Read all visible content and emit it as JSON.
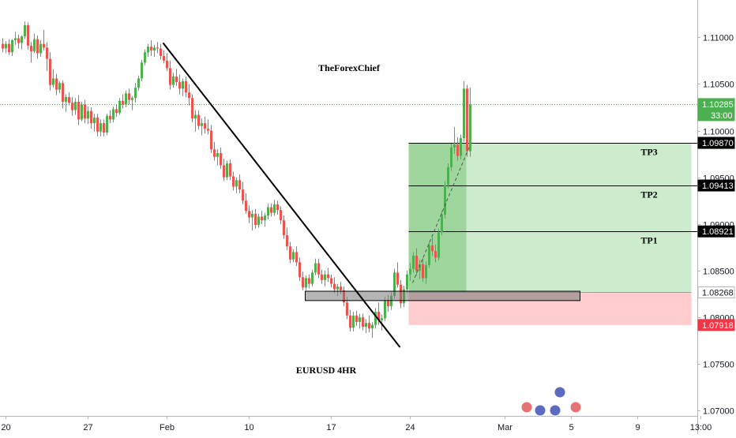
{
  "chart_data": {
    "type": "candlestick",
    "symbol": "EURUSD 4HR",
    "watermark": "TheForexChief",
    "ylim": [
      1.0675,
      1.114
    ],
    "y_ticks": [
      {
        "value": 1.11,
        "label": "1.11000"
      },
      {
        "value": 1.105,
        "label": "1.10500"
      },
      {
        "value": 1.1,
        "label": "1.10000"
      },
      {
        "value": 1.095,
        "label": "1.09500"
      },
      {
        "value": 1.09,
        "label": "1.09000"
      },
      {
        "value": 1.085,
        "label": "1.08500"
      },
      {
        "value": 1.08,
        "label": "1.08000"
      },
      {
        "value": 1.075,
        "label": "1.07500"
      },
      {
        "value": 1.07,
        "label": "1.07000"
      }
    ],
    "x_ticks": [
      {
        "bar": 1,
        "label": "20"
      },
      {
        "bar": 27,
        "label": "27"
      },
      {
        "bar": 52,
        "label": "Feb"
      },
      {
        "bar": 78,
        "label": "10"
      },
      {
        "bar": 104,
        "label": "17"
      },
      {
        "bar": 129,
        "label": "24"
      },
      {
        "bar": 159,
        "label": "Mar"
      },
      {
        "bar": 180,
        "label": "5"
      },
      {
        "bar": 201,
        "label": "9"
      },
      {
        "bar": 221,
        "label": "13:00"
      }
    ],
    "price_labels": [
      {
        "value": 1.10285,
        "label": "1.10285",
        "sublabel": "33:00",
        "bg": "#4caf50",
        "fg": "#ffffff"
      },
      {
        "value": 1.09868,
        "label": "1.09868",
        "bg": "#4caf50",
        "fg": "#ffffff"
      },
      {
        "value": 1.0987,
        "label": "1.09870",
        "bg": "#000000",
        "fg": "#ffffff"
      },
      {
        "value": 1.09413,
        "label": "1.09413",
        "bg": "#000000",
        "fg": "#ffffff"
      },
      {
        "value": 1.08921,
        "label": "1.08921",
        "bg": "#000000",
        "fg": "#ffffff"
      },
      {
        "value": 1.08268,
        "label": "1.08268",
        "bg": "#ffffff",
        "fg": "#131722"
      },
      {
        "value": 1.07918,
        "label": "1.07918",
        "bg": "#f23645",
        "fg": "#ffffff"
      }
    ],
    "current_price": 1.10285,
    "take_profit_levels": [
      {
        "name": "TP3",
        "value": 1.0987
      },
      {
        "name": "TP2",
        "value": 1.09413
      },
      {
        "name": "TP1",
        "value": 1.08921
      }
    ],
    "position": {
      "entry": 1.08268,
      "stop": 1.07918,
      "target": 1.09868,
      "start_bar": 129,
      "end_bar": 218,
      "filled_until_bar": 147
    },
    "support_zone": {
      "top": 1.0828,
      "bottom": 1.0818,
      "start_bar": 96,
      "end_bar": 183
    },
    "trendline": {
      "from_bar": 51,
      "from_price": 1.1094,
      "to_bar": 126,
      "to_price": 1.0768
    },
    "projection_path": {
      "from_bar": 130,
      "from_price": 1.0837,
      "to_bar": 148,
      "to_price": 1.0983
    },
    "candles_ohlc": [
      [
        1.1093,
        1.1099,
        1.1084,
        1.1088
      ],
      [
        1.1088,
        1.1096,
        1.1083,
        1.1093
      ],
      [
        1.1093,
        1.1098,
        1.1081,
        1.1084
      ],
      [
        1.1084,
        1.1098,
        1.108,
        1.1097
      ],
      [
        1.1097,
        1.1106,
        1.1092,
        1.1099
      ],
      [
        1.1099,
        1.1103,
        1.1088,
        1.1094
      ],
      [
        1.1094,
        1.1102,
        1.1087,
        1.1101
      ],
      [
        1.1101,
        1.1117,
        1.1098,
        1.1113
      ],
      [
        1.1113,
        1.1116,
        1.1087,
        1.1091
      ],
      [
        1.1091,
        1.1095,
        1.1073,
        1.1085
      ],
      [
        1.1085,
        1.1104,
        1.1083,
        1.1098
      ],
      [
        1.1098,
        1.1102,
        1.1077,
        1.1083
      ],
      [
        1.1083,
        1.1097,
        1.1079,
        1.1093
      ],
      [
        1.1093,
        1.1108,
        1.1086,
        1.1089
      ],
      [
        1.1089,
        1.1095,
        1.1064,
        1.1077
      ],
      [
        1.1077,
        1.1084,
        1.1043,
        1.1049
      ],
      [
        1.1049,
        1.1066,
        1.1046,
        1.1056
      ],
      [
        1.1056,
        1.1061,
        1.1038,
        1.1044
      ],
      [
        1.1044,
        1.1053,
        1.104,
        1.1051
      ],
      [
        1.1051,
        1.1054,
        1.1024,
        1.1031
      ],
      [
        1.1031,
        1.1039,
        1.102,
        1.1036
      ],
      [
        1.1036,
        1.1041,
        1.1027,
        1.103
      ],
      [
        1.103,
        1.1036,
        1.1016,
        1.1022
      ],
      [
        1.1022,
        1.1035,
        1.1017,
        1.1031
      ],
      [
        1.1031,
        1.1038,
        1.1006,
        1.1012
      ],
      [
        1.1012,
        1.1031,
        1.101,
        1.1028
      ],
      [
        1.1028,
        1.1033,
        1.1008,
        1.1013
      ],
      [
        1.1013,
        1.1026,
        1.1007,
        1.1021
      ],
      [
        1.1021,
        1.1025,
        1.1002,
        1.1008
      ],
      [
        1.1008,
        1.1018,
        1.0999,
        1.1014
      ],
      [
        1.1014,
        1.1018,
        1.0994,
        1.0999
      ],
      [
        1.0999,
        1.1012,
        1.0994,
        1.1008
      ],
      [
        1.1008,
        1.1012,
        1.0994,
        1.0998
      ],
      [
        1.0998,
        1.1018,
        1.0995,
        1.1016
      ],
      [
        1.1016,
        1.1022,
        1.1008,
        1.1012
      ],
      [
        1.1012,
        1.1026,
        1.1009,
        1.1023
      ],
      [
        1.1023,
        1.1028,
        1.1015,
        1.1019
      ],
      [
        1.1019,
        1.1035,
        1.1017,
        1.1032
      ],
      [
        1.1032,
        1.1039,
        1.1024,
        1.1028
      ],
      [
        1.1028,
        1.1043,
        1.1025,
        1.104
      ],
      [
        1.104,
        1.1045,
        1.1028,
        1.1033
      ],
      [
        1.1033,
        1.1037,
        1.1022,
        1.1035
      ],
      [
        1.1035,
        1.1051,
        1.103,
        1.1046
      ],
      [
        1.1046,
        1.1059,
        1.1043,
        1.1056
      ],
      [
        1.1056,
        1.1076,
        1.1053,
        1.1073
      ],
      [
        1.1073,
        1.1087,
        1.107,
        1.1084
      ],
      [
        1.1084,
        1.1093,
        1.1079,
        1.109
      ],
      [
        1.109,
        1.1097,
        1.108,
        1.1086
      ],
      [
        1.1086,
        1.1092,
        1.1079,
        1.1089
      ],
      [
        1.1089,
        1.1095,
        1.1083,
        1.1088
      ],
      [
        1.1088,
        1.1093,
        1.1076,
        1.108
      ],
      [
        1.108,
        1.1086,
        1.1072,
        1.1075
      ],
      [
        1.1075,
        1.1083,
        1.1064,
        1.1067
      ],
      [
        1.1067,
        1.1075,
        1.1044,
        1.1049
      ],
      [
        1.1049,
        1.1062,
        1.1046,
        1.1058
      ],
      [
        1.1058,
        1.1066,
        1.1048,
        1.1052
      ],
      [
        1.1052,
        1.106,
        1.1039,
        1.1045
      ],
      [
        1.1045,
        1.1056,
        1.1037,
        1.1053
      ],
      [
        1.1053,
        1.1058,
        1.1036,
        1.1041
      ],
      [
        1.1041,
        1.105,
        1.1027,
        1.1035
      ],
      [
        1.1035,
        1.1039,
        1.1009,
        1.1013
      ],
      [
        1.1013,
        1.1022,
        1.0999,
        1.1017
      ],
      [
        1.1017,
        1.1022,
        1.1001,
        1.1005
      ],
      [
        1.1005,
        1.1013,
        1.0995,
        1.1008
      ],
      [
        1.1008,
        1.1015,
        1.0997,
        1.1002
      ],
      [
        1.1002,
        1.1012,
        1.0996,
        1.1
      ],
      [
        1.1,
        1.1006,
        1.0976,
        1.098
      ],
      [
        1.098,
        1.0988,
        1.0968,
        1.0972
      ],
      [
        1.0972,
        1.098,
        1.0963,
        1.0976
      ],
      [
        1.0976,
        1.0982,
        1.0959,
        1.0963
      ],
      [
        1.0963,
        1.097,
        1.0946,
        1.095
      ],
      [
        1.095,
        1.0968,
        1.0947,
        1.0965
      ],
      [
        1.0965,
        1.0969,
        1.0947,
        1.0951
      ],
      [
        1.0951,
        1.0956,
        1.0936,
        1.094
      ],
      [
        1.094,
        1.095,
        1.0933,
        1.0947
      ],
      [
        1.0947,
        1.0953,
        1.0933,
        1.0937
      ],
      [
        1.0937,
        1.0945,
        1.0921,
        1.0925
      ],
      [
        1.0925,
        1.0933,
        1.0911,
        1.0914
      ],
      [
        1.0914,
        1.092,
        1.0901,
        1.0907
      ],
      [
        1.0907,
        1.0915,
        1.0893,
        1.0911
      ],
      [
        1.0911,
        1.0916,
        1.0895,
        1.0899
      ],
      [
        1.0899,
        1.0911,
        1.0896,
        1.0908
      ],
      [
        1.0908,
        1.0914,
        1.09,
        1.0904
      ],
      [
        1.0904,
        1.0912,
        1.0897,
        1.0909
      ],
      [
        1.0909,
        1.0922,
        1.0905,
        1.0918
      ],
      [
        1.0918,
        1.0922,
        1.0908,
        1.0912
      ],
      [
        1.0912,
        1.0926,
        1.0909,
        1.0921
      ],
      [
        1.0921,
        1.0925,
        1.091,
        1.0915
      ],
      [
        1.0915,
        1.0919,
        1.09,
        1.0904
      ],
      [
        1.0904,
        1.0909,
        1.0884,
        1.0888
      ],
      [
        1.0888,
        1.0896,
        1.0872,
        1.0876
      ],
      [
        1.0876,
        1.0881,
        1.0858,
        1.0862
      ],
      [
        1.0862,
        1.0873,
        1.0859,
        1.087
      ],
      [
        1.087,
        1.0876,
        1.0855,
        1.0859
      ],
      [
        1.0859,
        1.0864,
        1.0839,
        1.0843
      ],
      [
        1.0843,
        1.0849,
        1.0829,
        1.0832
      ],
      [
        1.0832,
        1.0845,
        1.0829,
        1.0842
      ],
      [
        1.0842,
        1.0846,
        1.0831,
        1.0836
      ],
      [
        1.0836,
        1.0851,
        1.0833,
        1.0848
      ],
      [
        1.0848,
        1.0863,
        1.0845,
        1.0858
      ],
      [
        1.0858,
        1.0863,
        1.0842,
        1.0846
      ],
      [
        1.0846,
        1.0851,
        1.0836,
        1.084
      ],
      [
        1.084,
        1.085,
        1.0833,
        1.0846
      ],
      [
        1.0846,
        1.0853,
        1.0838,
        1.0842
      ],
      [
        1.0842,
        1.0846,
        1.0832,
        1.0836
      ],
      [
        1.0836,
        1.0843,
        1.0826,
        1.083
      ],
      [
        1.083,
        1.0836,
        1.0823,
        1.0833
      ],
      [
        1.0833,
        1.0838,
        1.0825,
        1.0829
      ],
      [
        1.0829,
        1.0833,
        1.0812,
        1.0816
      ],
      [
        1.0816,
        1.0822,
        1.0798,
        1.0802
      ],
      [
        1.0802,
        1.0808,
        1.0785,
        1.0789
      ],
      [
        1.0789,
        1.0806,
        1.0785,
        1.0802
      ],
      [
        1.0802,
        1.0807,
        1.0791,
        1.0795
      ],
      [
        1.0795,
        1.0804,
        1.0788,
        1.08
      ],
      [
        1.08,
        1.0804,
        1.0786,
        1.079
      ],
      [
        1.079,
        1.0798,
        1.0783,
        1.0794
      ],
      [
        1.0794,
        1.0802,
        1.0784,
        1.0788
      ],
      [
        1.0788,
        1.0795,
        1.0778,
        1.0792
      ],
      [
        1.0792,
        1.081,
        1.0788,
        1.0806
      ],
      [
        1.0806,
        1.0816,
        1.0792,
        1.0797
      ],
      [
        1.0797,
        1.0803,
        1.0786,
        1.0799
      ],
      [
        1.0799,
        1.0822,
        1.0796,
        1.0818
      ],
      [
        1.0818,
        1.0824,
        1.0806,
        1.0812
      ],
      [
        1.0812,
        1.0827,
        1.0808,
        1.0823
      ],
      [
        1.0823,
        1.0852,
        1.082,
        1.0848
      ],
      [
        1.0848,
        1.0859,
        1.0832,
        1.0835
      ],
      [
        1.0835,
        1.084,
        1.081,
        1.0815
      ],
      [
        1.0815,
        1.0834,
        1.0811,
        1.083
      ],
      [
        1.083,
        1.085,
        1.0826,
        1.0846
      ],
      [
        1.0846,
        1.0858,
        1.0839,
        1.0852
      ],
      [
        1.0852,
        1.087,
        1.0848,
        1.0866
      ],
      [
        1.0866,
        1.0874,
        1.0845,
        1.085
      ],
      [
        1.085,
        1.0862,
        1.0841,
        1.0857
      ],
      [
        1.0857,
        1.0864,
        1.0838,
        1.0842
      ],
      [
        1.0842,
        1.086,
        1.0836,
        1.0856
      ],
      [
        1.0856,
        1.0881,
        1.0853,
        1.0877
      ],
      [
        1.0877,
        1.0886,
        1.0866,
        1.0871
      ],
      [
        1.0871,
        1.0878,
        1.0859,
        1.0864
      ],
      [
        1.0864,
        1.0895,
        1.0861,
        1.0891
      ],
      [
        1.0891,
        1.0914,
        1.0888,
        1.091
      ],
      [
        1.091,
        1.0946,
        1.0906,
        1.0942
      ],
      [
        1.0942,
        1.0965,
        1.0938,
        1.0961
      ],
      [
        1.0961,
        1.0986,
        1.0957,
        1.0982
      ],
      [
        1.0982,
        1.1004,
        1.0975,
        1.0985
      ],
      [
        1.0985,
        1.0993,
        1.0968,
        1.0973
      ],
      [
        1.0973,
        1.0996,
        1.0969,
        1.0992
      ],
      [
        1.0992,
        1.1053,
        1.0988,
        1.1045
      ],
      [
        1.1045,
        1.1049,
        1.0972,
        1.0978
      ],
      [
        1.0978,
        1.1046,
        1.0972,
        1.1028
      ]
    ]
  }
}
